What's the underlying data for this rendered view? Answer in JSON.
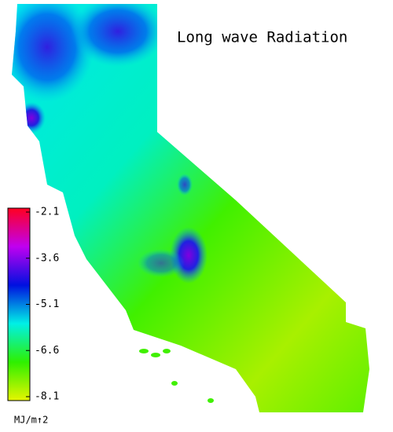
{
  "title": "Long wave Radiation",
  "colorbar": {
    "label": "MJ/m↑2",
    "clim": [
      -8.1,
      -2.1
    ],
    "ticks": [
      -2.1,
      -3.6,
      -5.1,
      -6.6,
      -8.1
    ],
    "colors": [
      "#e6f500",
      "#2ef000",
      "#00f0e6",
      "#0010e0",
      "#c000f0",
      "#ff0020"
    ]
  }
}
